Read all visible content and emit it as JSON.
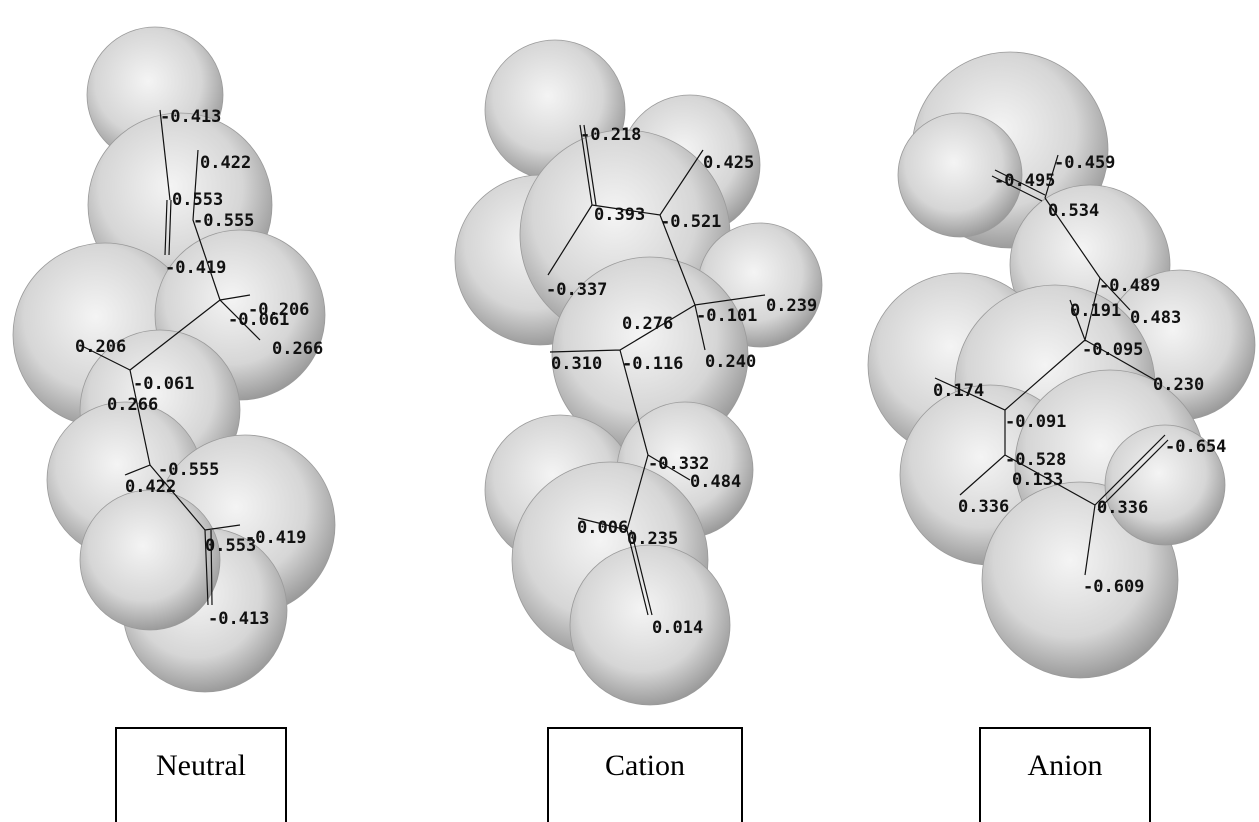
{
  "panels": [
    {
      "label": "Neutral",
      "charges": [
        "-0.413",
        "0.422",
        "0.553",
        "-0.555",
        "-0.419",
        "-0.206",
        "-0.061",
        "0.266",
        "0.206",
        "-0.061",
        "0.266",
        "-0.555",
        "0.422",
        "0.553",
        "-0.419",
        "-0.413"
      ]
    },
    {
      "label": "Cation",
      "charges": [
        "-0.218",
        "0.425",
        "0.393",
        "-0.521",
        "-0.337",
        "0.276",
        "-0.101",
        "0.239",
        "0.310",
        "-0.116",
        "0.240",
        "-0.332",
        "0.484",
        "0.006",
        "0.235",
        "0.014"
      ]
    },
    {
      "label": "Anion",
      "charges": [
        "-0.495",
        "-0.459",
        "0.534",
        "-0.489",
        "0.191",
        "0.483",
        "-0.095",
        "0.174",
        "0.230",
        "-0.091",
        "-0.528",
        "-0.654",
        "0.133",
        "0.336",
        "0.336",
        "-0.609"
      ]
    }
  ]
}
